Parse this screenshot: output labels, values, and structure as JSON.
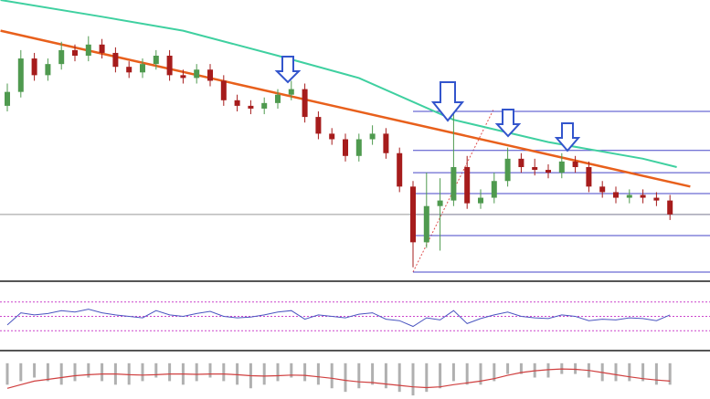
{
  "chart_data": {
    "type": "candlestick",
    "ylim": [
      0,
      100
    ],
    "up_color": "#4f9a4f",
    "down_color": "#a61c1c",
    "open": [
      62,
      67,
      79,
      73,
      77,
      82,
      80,
      84,
      81,
      76,
      74,
      77,
      80,
      73,
      72,
      75,
      71,
      64,
      62,
      61,
      63,
      66,
      68,
      58,
      52,
      50,
      44,
      50,
      52,
      45,
      33,
      13,
      26,
      28,
      40,
      27,
      29,
      35,
      43,
      40,
      39,
      38,
      42,
      40,
      33,
      31,
      29,
      30,
      29,
      28
    ],
    "high": [
      70,
      82,
      81,
      79,
      85,
      84,
      87,
      86,
      83,
      78,
      79,
      82,
      82,
      75,
      77,
      77,
      73,
      66,
      64,
      65,
      68,
      71,
      70,
      60,
      54,
      52,
      52,
      55,
      54,
      47,
      35,
      38,
      36,
      61,
      44,
      32,
      38,
      47,
      45,
      43,
      41,
      45,
      44,
      42,
      35,
      33,
      32,
      32,
      31,
      30
    ],
    "low": [
      60,
      65,
      71,
      71,
      75,
      78,
      78,
      79,
      74,
      72,
      72,
      75,
      71,
      70,
      70,
      69,
      62,
      60,
      59,
      59,
      61,
      64,
      56,
      50,
      48,
      42,
      42,
      48,
      43,
      31,
      4,
      11,
      10,
      26,
      25,
      25,
      27,
      33,
      38,
      37,
      36,
      36,
      38,
      31,
      29,
      27,
      27,
      27,
      26,
      21
    ],
    "close": [
      67,
      79,
      73,
      77,
      82,
      80,
      84,
      81,
      76,
      74,
      77,
      80,
      73,
      72,
      75,
      71,
      64,
      62,
      61,
      63,
      66,
      68,
      58,
      52,
      50,
      44,
      50,
      52,
      45,
      33,
      13,
      26,
      28,
      40,
      27,
      29,
      35,
      43,
      40,
      39,
      38,
      42,
      40,
      33,
      31,
      29,
      30,
      29,
      28,
      23
    ],
    "moving_average": {
      "color": "#3fd0a0",
      "x": [
        -0.5,
        7,
        13,
        20,
        26,
        33,
        40,
        47,
        49.5
      ],
      "values": [
        100,
        94,
        89,
        80,
        72,
        57,
        49,
        43,
        40
      ]
    },
    "trendline": {
      "color": "#e8601c",
      "x": [
        -0.5,
        50.5
      ],
      "values": [
        89,
        33
      ]
    },
    "levels": {
      "color": "#4646c8",
      "values": [
        60,
        46,
        38,
        30.5,
        23,
        15.4,
        2.3
      ]
    },
    "price_line": 23,
    "rsi": {
      "color": "#4a55c0",
      "ylim": [
        10,
        90
      ],
      "guides": [
        70,
        50,
        30
      ],
      "values": [
        38,
        55,
        52,
        54,
        58,
        56,
        60,
        55,
        52,
        50,
        48,
        58,
        52,
        50,
        54,
        57,
        50,
        48,
        49,
        52,
        56,
        58,
        46,
        52,
        50,
        48,
        53,
        55,
        46,
        44,
        36,
        48,
        45,
        58,
        40,
        47,
        52,
        56,
        50,
        48,
        47,
        52,
        50,
        44,
        46,
        45,
        48,
        47,
        44,
        52
      ]
    },
    "macd": {
      "ylim": [
        -10,
        2
      ],
      "hist_color": "#b0b0b0",
      "signal_color": "#d04040",
      "histogram": [
        -6,
        -5,
        -4,
        -5,
        -6,
        -5,
        -4,
        -5,
        -6,
        -6,
        -5,
        -4,
        -5,
        -6,
        -5,
        -4,
        -5,
        -6,
        -7,
        -6,
        -5,
        -4,
        -5,
        -6,
        -7,
        -8,
        -7,
        -6,
        -7,
        -8,
        -9,
        -8,
        -7,
        -5,
        -6,
        -6,
        -5,
        -3,
        -3,
        -4,
        -4,
        -3,
        -3,
        -4,
        -5,
        -5,
        -5,
        -5,
        -6,
        -6
      ],
      "signal": [
        -7,
        -6,
        -5,
        -4.5,
        -4,
        -3.5,
        -3.2,
        -3,
        -3,
        -3.2,
        -3.3,
        -3.2,
        -3,
        -3,
        -3.1,
        -3,
        -3,
        -3.2,
        -3.5,
        -3.6,
        -3.5,
        -3.3,
        -3.4,
        -3.8,
        -4.2,
        -4.8,
        -5.2,
        -5.4,
        -5.8,
        -6.2,
        -6.6,
        -6.8,
        -6.6,
        -6,
        -5.5,
        -5,
        -4.3,
        -3.4,
        -2.6,
        -2.1,
        -1.8,
        -1.6,
        -1.7,
        -2,
        -2.6,
        -3.2,
        -3.8,
        -4.3,
        -4.7,
        -5
      ]
    }
  }
}
